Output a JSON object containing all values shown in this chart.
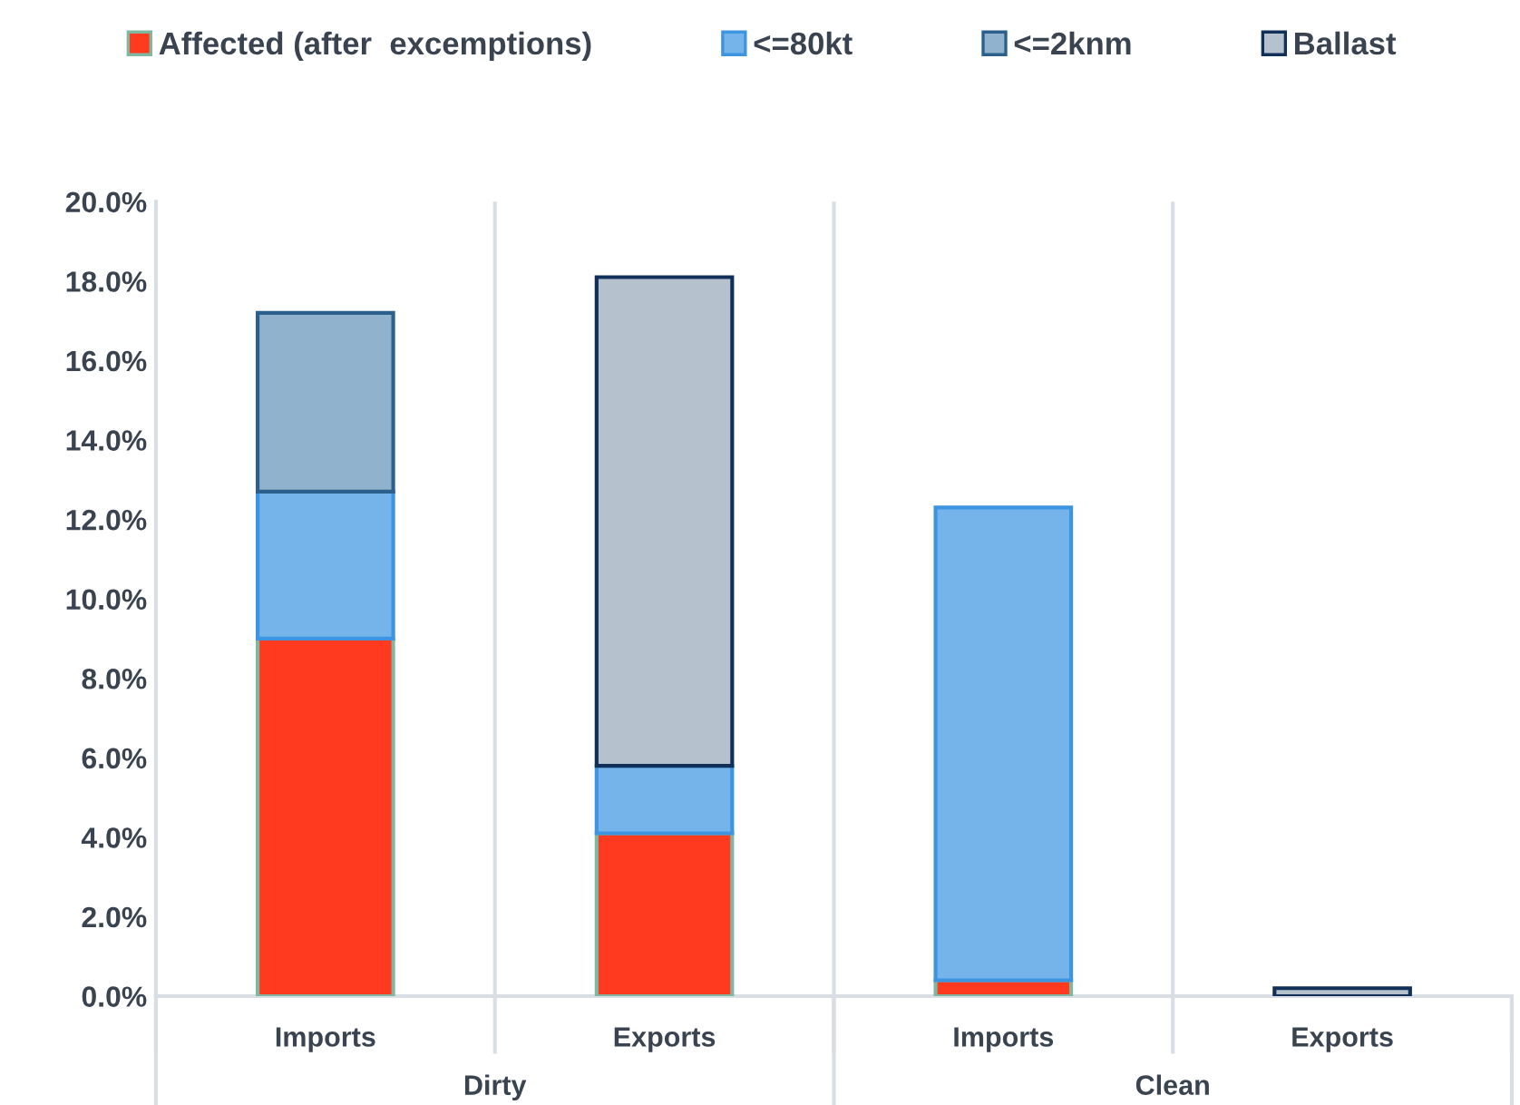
{
  "chart_data": {
    "type": "bar",
    "stacked": true,
    "categories": [
      "Imports",
      "Exports",
      "Imports",
      "Exports"
    ],
    "annotations": [
      "Dirty",
      "Clean"
    ],
    "series": [
      {
        "name": "Affected (after  excemptions)",
        "color": "#ff3a1e",
        "values": [
          9.0,
          4.1,
          0.4,
          0
        ]
      },
      {
        "name": "<=80kt",
        "color": "#74b4ea",
        "values": [
          3.7,
          1.7,
          11.9,
          0
        ]
      },
      {
        "name": "<=2knm",
        "color": "#91b2cc",
        "values": [
          4.5,
          0,
          0,
          0
        ]
      },
      {
        "name": "Ballast",
        "color": "#b5c1cd",
        "values": [
          0,
          12.3,
          0,
          0.2
        ]
      }
    ],
    "ylim": [
      0,
      20
    ],
    "yticks": [
      {
        "value": 0,
        "label": "0.0%"
      },
      {
        "value": 2,
        "label": "2.0%"
      },
      {
        "value": 4,
        "label": "4.0%"
      },
      {
        "value": 6,
        "label": "6.0%"
      },
      {
        "value": 8,
        "label": "8.0%"
      },
      {
        "value": 10,
        "label": "10.0%"
      },
      {
        "value": 12,
        "label": "12.0%"
      },
      {
        "value": 14,
        "label": "14.0%"
      },
      {
        "value": 16,
        "label": "16.0%"
      },
      {
        "value": 18,
        "label": "18.0%"
      },
      {
        "value": 20,
        "label": "20.0%"
      }
    ],
    "grid": "x",
    "legend": "top"
  }
}
